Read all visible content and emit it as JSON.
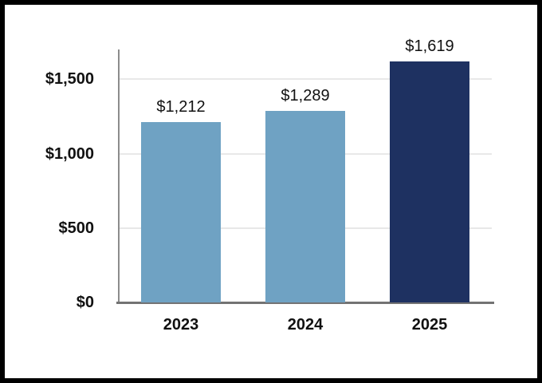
{
  "page": {
    "background_color": "#ffffff",
    "frame_border_color": "#000000"
  },
  "colors": {
    "bar_light_blue": "#6fa2c3",
    "bar_navy": "#1e3161",
    "gridline": "#e8e8e8",
    "y_axis_line": "#8c8c8c",
    "x_axis_line": "#737373",
    "text": "#111111"
  },
  "chart_data": {
    "type": "bar",
    "title": "",
    "xlabel": "",
    "ylabel": "",
    "categories": [
      "2023",
      "2024",
      "2025"
    ],
    "values": [
      1212,
      1289,
      1619
    ],
    "value_labels": [
      "$1,212",
      "$1,289",
      "$1,619"
    ],
    "bar_colors": [
      "#6fa2c3",
      "#6fa2c3",
      "#1e3161"
    ],
    "ylim": [
      0,
      1700
    ],
    "yticks": [
      0,
      500,
      1000,
      1500
    ],
    "ytick_labels": [
      "$0",
      "$500",
      "$1,000",
      "$1,500"
    ],
    "grid": true,
    "legend": false,
    "currency": "USD"
  }
}
